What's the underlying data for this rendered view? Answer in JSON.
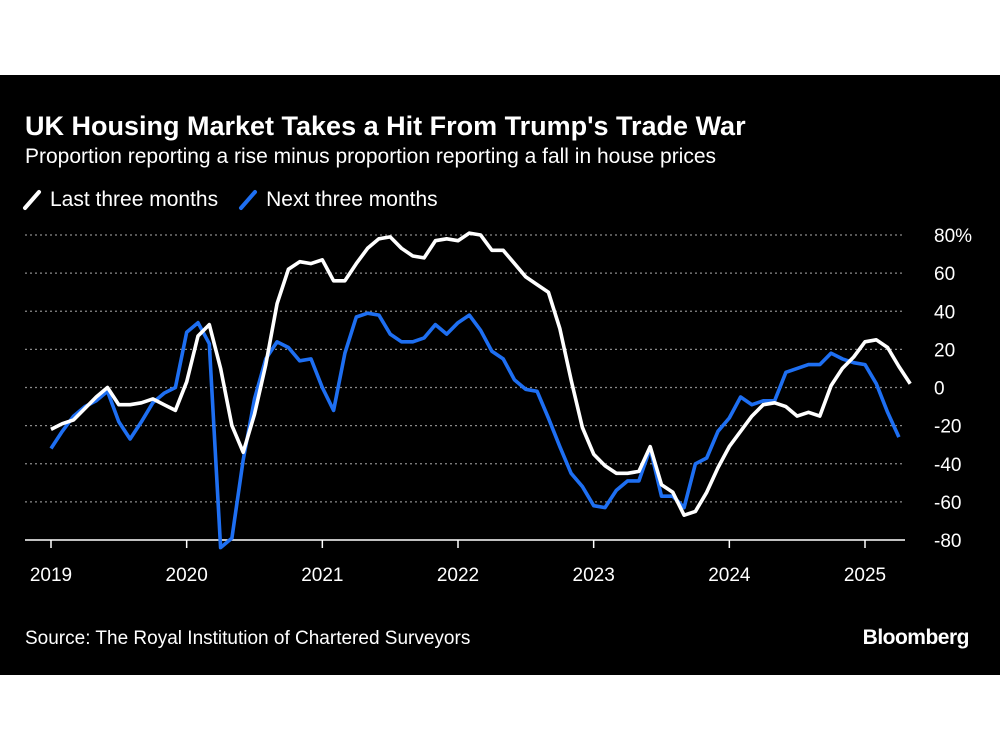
{
  "chart_data": {
    "type": "line",
    "title": "UK Housing Market Takes a Hit From Trump's Trade War",
    "subtitle": "Proportion reporting a rise minus proportion reporting a fall in house prices",
    "ylim": [
      -80,
      80
    ],
    "y_ticks": [
      -80,
      -60,
      -40,
      -20,
      0,
      20,
      40,
      60,
      80
    ],
    "y_tick_labels": [
      "-80",
      "-60",
      "-40",
      "-20",
      "0",
      "20",
      "40",
      "60",
      "80%"
    ],
    "x_ticks": [
      "2019",
      "2020",
      "2021",
      "2022",
      "2023",
      "2024",
      "2025"
    ],
    "grid": "horizontal dotted",
    "legend_position": "top-left",
    "series": [
      {
        "name": "Last three months",
        "color": "#ffffff",
        "points": [
          [
            "2019-01",
            -22
          ],
          [
            "2019-02",
            -19
          ],
          [
            "2019-03",
            -17
          ],
          [
            "2019-04",
            -11
          ],
          [
            "2019-05",
            -5
          ],
          [
            "2019-06",
            0
          ],
          [
            "2019-07",
            -9
          ],
          [
            "2019-08",
            -9
          ],
          [
            "2019-09",
            -8
          ],
          [
            "2019-10",
            -6
          ],
          [
            "2019-11",
            -9
          ],
          [
            "2019-12",
            -12
          ],
          [
            "2020-01",
            3
          ],
          [
            "2020-02",
            27
          ],
          [
            "2020-03",
            33
          ],
          [
            "2020-04",
            10
          ],
          [
            "2020-05",
            -20
          ],
          [
            "2020-06",
            -34
          ],
          [
            "2020-07",
            -14
          ],
          [
            "2020-08",
            12
          ],
          [
            "2020-09",
            44
          ],
          [
            "2020-10",
            62
          ],
          [
            "2020-11",
            66
          ],
          [
            "2020-12",
            65
          ],
          [
            "2021-01",
            67
          ],
          [
            "2021-02",
            56
          ],
          [
            "2021-03",
            56
          ],
          [
            "2021-04",
            65
          ],
          [
            "2021-05",
            73
          ],
          [
            "2021-06",
            78
          ],
          [
            "2021-07",
            79
          ],
          [
            "2021-08",
            73
          ],
          [
            "2021-09",
            69
          ],
          [
            "2021-10",
            68
          ],
          [
            "2021-11",
            77
          ],
          [
            "2021-12",
            78
          ],
          [
            "2022-01",
            77
          ],
          [
            "2022-02",
            81
          ],
          [
            "2022-03",
            80
          ],
          [
            "2022-04",
            72
          ],
          [
            "2022-05",
            72
          ],
          [
            "2022-06",
            65
          ],
          [
            "2022-07",
            58
          ],
          [
            "2022-08",
            54
          ],
          [
            "2022-09",
            50
          ],
          [
            "2022-10",
            31
          ],
          [
            "2022-11",
            4
          ],
          [
            "2022-12",
            -21
          ],
          [
            "2023-01",
            -35
          ],
          [
            "2023-02",
            -41
          ],
          [
            "2023-03",
            -45
          ],
          [
            "2023-04",
            -45
          ],
          [
            "2023-05",
            -44
          ],
          [
            "2023-06",
            -31
          ],
          [
            "2023-07",
            -51
          ],
          [
            "2023-08",
            -55
          ],
          [
            "2023-09",
            -67
          ],
          [
            "2023-10",
            -65
          ],
          [
            "2023-11",
            -55
          ],
          [
            "2023-12",
            -42
          ],
          [
            "2024-01",
            -31
          ],
          [
            "2024-02",
            -23
          ],
          [
            "2024-03",
            -15
          ],
          [
            "2024-04",
            -9
          ],
          [
            "2024-05",
            -8
          ],
          [
            "2024-06",
            -10
          ],
          [
            "2024-07",
            -15
          ],
          [
            "2024-08",
            -13
          ],
          [
            "2024-09",
            -15
          ],
          [
            "2024-10",
            1
          ],
          [
            "2024-11",
            10
          ],
          [
            "2024-12",
            16
          ],
          [
            "2025-01",
            24
          ],
          [
            "2025-02",
            25
          ],
          [
            "2025-03",
            21
          ],
          [
            "2025-04",
            11
          ],
          [
            "2025-05",
            2
          ]
        ]
      },
      {
        "name": "Next three months",
        "color": "#1e6ff2",
        "points": [
          [
            "2019-01",
            -32
          ],
          [
            "2019-02",
            -23
          ],
          [
            "2019-03",
            -15
          ],
          [
            "2019-04",
            -10
          ],
          [
            "2019-05",
            -7
          ],
          [
            "2019-06",
            -2
          ],
          [
            "2019-07",
            -18
          ],
          [
            "2019-08",
            -27
          ],
          [
            "2019-09",
            -18
          ],
          [
            "2019-10",
            -8
          ],
          [
            "2019-11",
            -3
          ],
          [
            "2019-12",
            0
          ],
          [
            "2020-01",
            29
          ],
          [
            "2020-02",
            34
          ],
          [
            "2020-03",
            23
          ],
          [
            "2020-04",
            -84
          ],
          [
            "2020-05",
            -79
          ],
          [
            "2020-06",
            -38
          ],
          [
            "2020-07",
            -6
          ],
          [
            "2020-08",
            15
          ],
          [
            "2020-09",
            24
          ],
          [
            "2020-10",
            21
          ],
          [
            "2020-11",
            14
          ],
          [
            "2020-12",
            15
          ],
          [
            "2021-01",
            0
          ],
          [
            "2021-02",
            -12
          ],
          [
            "2021-03",
            18
          ],
          [
            "2021-04",
            37
          ],
          [
            "2021-05",
            39
          ],
          [
            "2021-06",
            38
          ],
          [
            "2021-07",
            28
          ],
          [
            "2021-08",
            24
          ],
          [
            "2021-09",
            24
          ],
          [
            "2021-10",
            26
          ],
          [
            "2021-11",
            33
          ],
          [
            "2021-12",
            28
          ],
          [
            "2022-01",
            34
          ],
          [
            "2022-02",
            38
          ],
          [
            "2022-03",
            30
          ],
          [
            "2022-04",
            19
          ],
          [
            "2022-05",
            15
          ],
          [
            "2022-06",
            4
          ],
          [
            "2022-07",
            -1
          ],
          [
            "2022-08",
            -2
          ],
          [
            "2022-09",
            -16
          ],
          [
            "2022-10",
            -31
          ],
          [
            "2022-11",
            -45
          ],
          [
            "2022-12",
            -52
          ],
          [
            "2023-01",
            -62
          ],
          [
            "2023-02",
            -63
          ],
          [
            "2023-03",
            -54
          ],
          [
            "2023-04",
            -49
          ],
          [
            "2023-05",
            -49
          ],
          [
            "2023-06",
            -32
          ],
          [
            "2023-07",
            -57
          ],
          [
            "2023-08",
            -57
          ],
          [
            "2023-09",
            -63
          ],
          [
            "2023-10",
            -40
          ],
          [
            "2023-11",
            -37
          ],
          [
            "2023-12",
            -23
          ],
          [
            "2024-01",
            -16
          ],
          [
            "2024-02",
            -5
          ],
          [
            "2024-03",
            -9
          ],
          [
            "2024-04",
            -7
          ],
          [
            "2024-05",
            -7
          ],
          [
            "2024-06",
            8
          ],
          [
            "2024-07",
            10
          ],
          [
            "2024-08",
            12
          ],
          [
            "2024-09",
            12
          ],
          [
            "2024-10",
            18
          ],
          [
            "2024-11",
            15
          ],
          [
            "2024-12",
            13
          ],
          [
            "2025-01",
            12
          ],
          [
            "2025-02",
            2
          ],
          [
            "2025-03",
            -13
          ],
          [
            "2025-04",
            -26
          ]
        ]
      }
    ]
  },
  "source": "Source: The Royal Institution of Chartered Surveyors",
  "brand": "Bloomberg"
}
